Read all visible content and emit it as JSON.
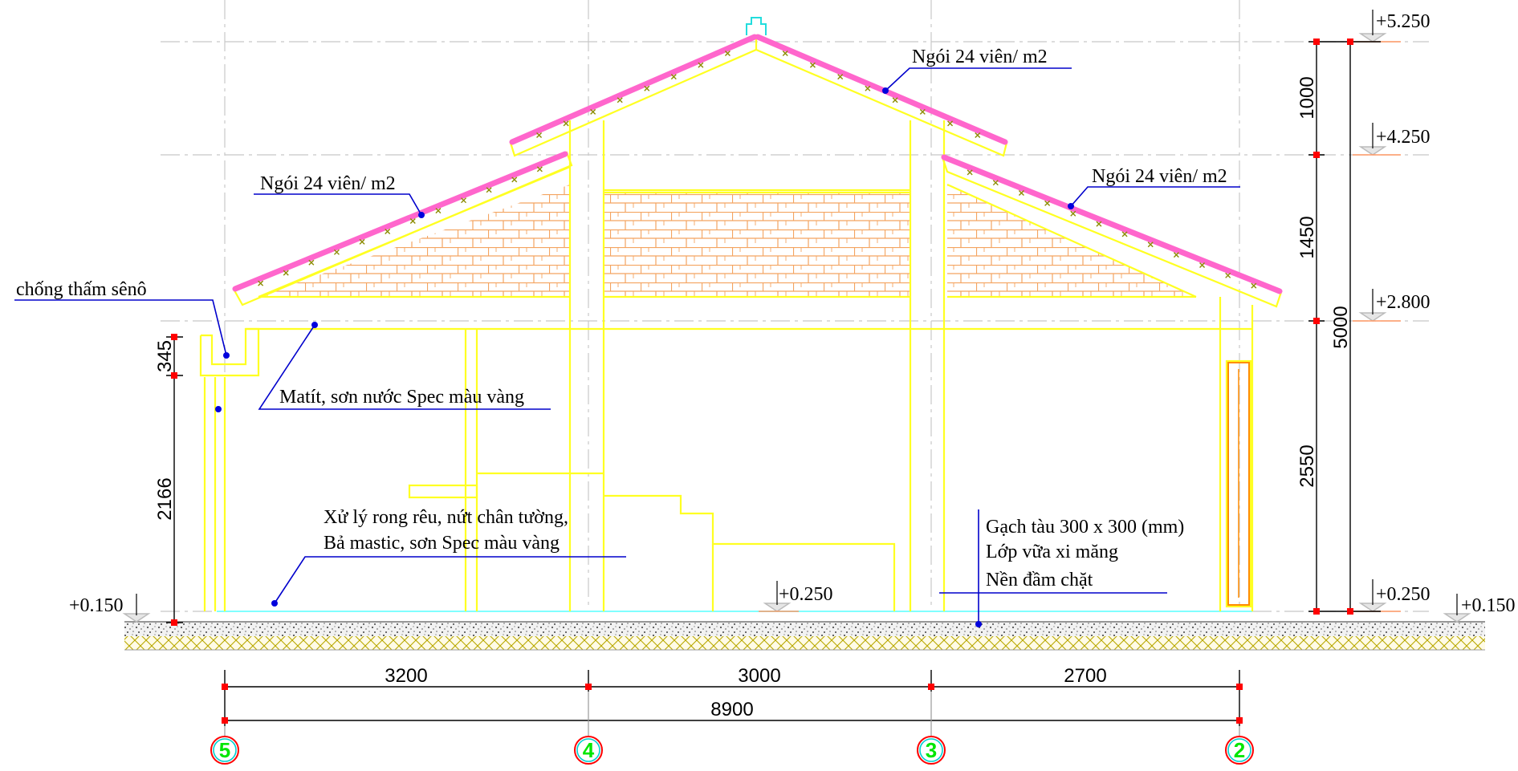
{
  "notes": {
    "roof_tile_top": "Ngói 24 viên/ m2",
    "roof_tile_left": "Ngói 24 viên/ m2",
    "roof_tile_right": "Ngói 24 viên/ m2",
    "gutter_waterproofing": "chống thấm sênô",
    "putty_paint": "Matít, sơn nước Spec màu vàng",
    "wall_base_line1": "Xử lý rong rêu, nứt chân tường,",
    "wall_base_line2": "Bả mastic, sơn Spec màu vàng",
    "floor_line1": "Gạch tàu 300 x 300 (mm)",
    "floor_line2": "Lớp vữa xi măng",
    "floor_line3": "Nền đầm chặt"
  },
  "levels": {
    "ridge": "+5.250",
    "upper_eave": "+4.250",
    "eave": "+2.800",
    "floor_right": "+0.250",
    "floor_mid": "+0.250",
    "ground_left": "+0.150",
    "ground_right": "+0.150"
  },
  "vertical_dims": {
    "top": "1000",
    "middle": "1450",
    "lower": "2550",
    "overall": "5000",
    "gutter": "345",
    "wall": "2166"
  },
  "horizontal_dims": {
    "span_5_4": "3200",
    "span_4_3": "3000",
    "span_3_2": "2700",
    "overall": "8900"
  },
  "axes": [
    "5",
    "4",
    "3",
    "2"
  ],
  "colors": {
    "structure": "#ffff22",
    "roof_tile": "#ff66cc",
    "brick_gable": "#f4a460",
    "axis_label": "#00e600",
    "leader": "#0000cc",
    "dimension_tick": "#ff0000"
  }
}
